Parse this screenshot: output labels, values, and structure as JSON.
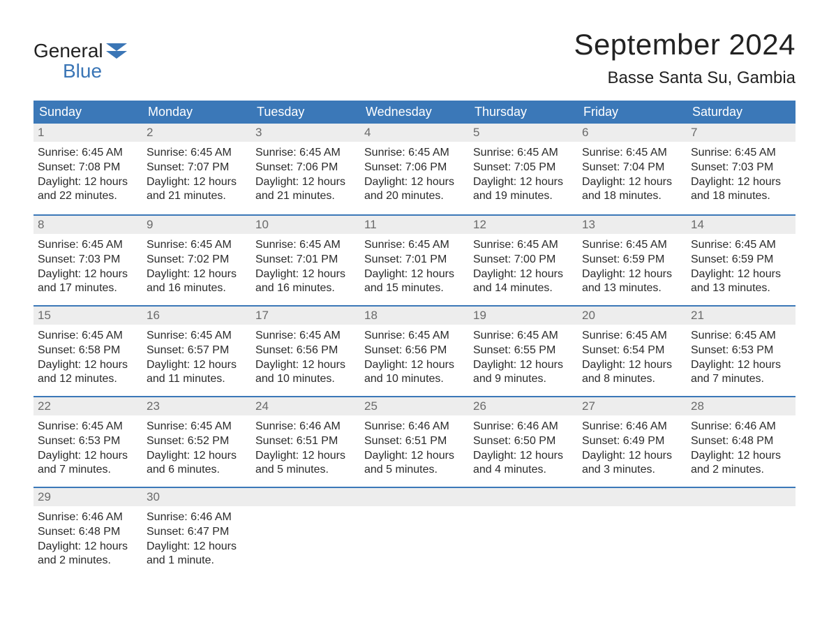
{
  "meta": {
    "type": "calendar-infographic",
    "background_color": "#ffffff",
    "text_color": "#2a2a2a",
    "header_bg": "#3b78b8",
    "header_text_color": "#ffffff",
    "daynum_bg": "#ededed",
    "daynum_color": "#6a6a6a",
    "week_border_color": "#3b78b8",
    "title_fontsize": 42,
    "location_fontsize": 24,
    "weekday_fontsize": 18,
    "body_fontsize": 16,
    "columns": 7,
    "rows_weeks": 5
  },
  "logo": {
    "word_top": "General",
    "word_bottom": "Blue",
    "accent_color": "#3b76b6",
    "base_color": "#222222"
  },
  "title": "September 2024",
  "location": "Basse Santa Su, Gambia",
  "weekdays": [
    "Sunday",
    "Monday",
    "Tuesday",
    "Wednesday",
    "Thursday",
    "Friday",
    "Saturday"
  ],
  "days": [
    {
      "n": "1",
      "sunrise": "Sunrise: 6:45 AM",
      "sunset": "Sunset: 7:08 PM",
      "day1": "Daylight: 12 hours",
      "day2": "and 22 minutes."
    },
    {
      "n": "2",
      "sunrise": "Sunrise: 6:45 AM",
      "sunset": "Sunset: 7:07 PM",
      "day1": "Daylight: 12 hours",
      "day2": "and 21 minutes."
    },
    {
      "n": "3",
      "sunrise": "Sunrise: 6:45 AM",
      "sunset": "Sunset: 7:06 PM",
      "day1": "Daylight: 12 hours",
      "day2": "and 21 minutes."
    },
    {
      "n": "4",
      "sunrise": "Sunrise: 6:45 AM",
      "sunset": "Sunset: 7:06 PM",
      "day1": "Daylight: 12 hours",
      "day2": "and 20 minutes."
    },
    {
      "n": "5",
      "sunrise": "Sunrise: 6:45 AM",
      "sunset": "Sunset: 7:05 PM",
      "day1": "Daylight: 12 hours",
      "day2": "and 19 minutes."
    },
    {
      "n": "6",
      "sunrise": "Sunrise: 6:45 AM",
      "sunset": "Sunset: 7:04 PM",
      "day1": "Daylight: 12 hours",
      "day2": "and 18 minutes."
    },
    {
      "n": "7",
      "sunrise": "Sunrise: 6:45 AM",
      "sunset": "Sunset: 7:03 PM",
      "day1": "Daylight: 12 hours",
      "day2": "and 18 minutes."
    },
    {
      "n": "8",
      "sunrise": "Sunrise: 6:45 AM",
      "sunset": "Sunset: 7:03 PM",
      "day1": "Daylight: 12 hours",
      "day2": "and 17 minutes."
    },
    {
      "n": "9",
      "sunrise": "Sunrise: 6:45 AM",
      "sunset": "Sunset: 7:02 PM",
      "day1": "Daylight: 12 hours",
      "day2": "and 16 minutes."
    },
    {
      "n": "10",
      "sunrise": "Sunrise: 6:45 AM",
      "sunset": "Sunset: 7:01 PM",
      "day1": "Daylight: 12 hours",
      "day2": "and 16 minutes."
    },
    {
      "n": "11",
      "sunrise": "Sunrise: 6:45 AM",
      "sunset": "Sunset: 7:01 PM",
      "day1": "Daylight: 12 hours",
      "day2": "and 15 minutes."
    },
    {
      "n": "12",
      "sunrise": "Sunrise: 6:45 AM",
      "sunset": "Sunset: 7:00 PM",
      "day1": "Daylight: 12 hours",
      "day2": "and 14 minutes."
    },
    {
      "n": "13",
      "sunrise": "Sunrise: 6:45 AM",
      "sunset": "Sunset: 6:59 PM",
      "day1": "Daylight: 12 hours",
      "day2": "and 13 minutes."
    },
    {
      "n": "14",
      "sunrise": "Sunrise: 6:45 AM",
      "sunset": "Sunset: 6:59 PM",
      "day1": "Daylight: 12 hours",
      "day2": "and 13 minutes."
    },
    {
      "n": "15",
      "sunrise": "Sunrise: 6:45 AM",
      "sunset": "Sunset: 6:58 PM",
      "day1": "Daylight: 12 hours",
      "day2": "and 12 minutes."
    },
    {
      "n": "16",
      "sunrise": "Sunrise: 6:45 AM",
      "sunset": "Sunset: 6:57 PM",
      "day1": "Daylight: 12 hours",
      "day2": "and 11 minutes."
    },
    {
      "n": "17",
      "sunrise": "Sunrise: 6:45 AM",
      "sunset": "Sunset: 6:56 PM",
      "day1": "Daylight: 12 hours",
      "day2": "and 10 minutes."
    },
    {
      "n": "18",
      "sunrise": "Sunrise: 6:45 AM",
      "sunset": "Sunset: 6:56 PM",
      "day1": "Daylight: 12 hours",
      "day2": "and 10 minutes."
    },
    {
      "n": "19",
      "sunrise": "Sunrise: 6:45 AM",
      "sunset": "Sunset: 6:55 PM",
      "day1": "Daylight: 12 hours",
      "day2": "and 9 minutes."
    },
    {
      "n": "20",
      "sunrise": "Sunrise: 6:45 AM",
      "sunset": "Sunset: 6:54 PM",
      "day1": "Daylight: 12 hours",
      "day2": "and 8 minutes."
    },
    {
      "n": "21",
      "sunrise": "Sunrise: 6:45 AM",
      "sunset": "Sunset: 6:53 PM",
      "day1": "Daylight: 12 hours",
      "day2": "and 7 minutes."
    },
    {
      "n": "22",
      "sunrise": "Sunrise: 6:45 AM",
      "sunset": "Sunset: 6:53 PM",
      "day1": "Daylight: 12 hours",
      "day2": "and 7 minutes."
    },
    {
      "n": "23",
      "sunrise": "Sunrise: 6:45 AM",
      "sunset": "Sunset: 6:52 PM",
      "day1": "Daylight: 12 hours",
      "day2": "and 6 minutes."
    },
    {
      "n": "24",
      "sunrise": "Sunrise: 6:46 AM",
      "sunset": "Sunset: 6:51 PM",
      "day1": "Daylight: 12 hours",
      "day2": "and 5 minutes."
    },
    {
      "n": "25",
      "sunrise": "Sunrise: 6:46 AM",
      "sunset": "Sunset: 6:51 PM",
      "day1": "Daylight: 12 hours",
      "day2": "and 5 minutes."
    },
    {
      "n": "26",
      "sunrise": "Sunrise: 6:46 AM",
      "sunset": "Sunset: 6:50 PM",
      "day1": "Daylight: 12 hours",
      "day2": "and 4 minutes."
    },
    {
      "n": "27",
      "sunrise": "Sunrise: 6:46 AM",
      "sunset": "Sunset: 6:49 PM",
      "day1": "Daylight: 12 hours",
      "day2": "and 3 minutes."
    },
    {
      "n": "28",
      "sunrise": "Sunrise: 6:46 AM",
      "sunset": "Sunset: 6:48 PM",
      "day1": "Daylight: 12 hours",
      "day2": "and 2 minutes."
    },
    {
      "n": "29",
      "sunrise": "Sunrise: 6:46 AM",
      "sunset": "Sunset: 6:48 PM",
      "day1": "Daylight: 12 hours",
      "day2": "and 2 minutes."
    },
    {
      "n": "30",
      "sunrise": "Sunrise: 6:46 AM",
      "sunset": "Sunset: 6:47 PM",
      "day1": "Daylight: 12 hours",
      "day2": "and 1 minute."
    }
  ]
}
